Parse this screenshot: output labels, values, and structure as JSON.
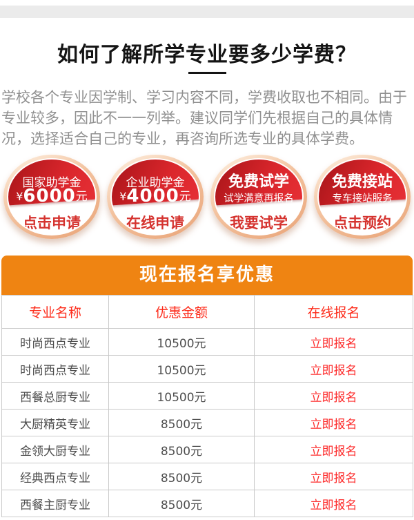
{
  "colors": {
    "accent_orange": "#ef8412",
    "badge_red": "#da262c",
    "badge_ring_peach": "#f3c29e",
    "action_red": "#d5332f",
    "table_header_red": "#fd2c1b",
    "enroll_link_red": "#fd2b2b",
    "intro_gray": "#909090",
    "top_bar_gray": "#ebebeb"
  },
  "header": {
    "title": "如何了解所学专业要多少学费？"
  },
  "intro": {
    "text": "学校各个专业因学制、学习内容不同，学费收取也不相同。由于专业较多，因此不一一列举。建议同学们先根据自己的具体情况，选择适合自己的专业，再咨询所选专业的具体学费。"
  },
  "badges": [
    {
      "title": "国家助学金",
      "currency": "¥",
      "amount": "6000",
      "unit": "元",
      "action": "点击申请"
    },
    {
      "title": "企业助学金",
      "currency": "¥",
      "amount": "4000",
      "unit": "元",
      "action": "在线申请"
    },
    {
      "title": "免费试学",
      "subtitle": "试学满意再报名",
      "action": "我要试学"
    },
    {
      "title": "免费接站",
      "subtitle": "专车接站服务",
      "action": "点击预约"
    }
  ],
  "promo": {
    "banner_title": "现在报名享优惠"
  },
  "table": {
    "headers": [
      "专业名称",
      "优惠金额",
      "在线报名"
    ],
    "rows": [
      {
        "major": "时尚西点专业",
        "discount": "10500元",
        "action": "立即报名"
      },
      {
        "major": "时尚西点专业",
        "discount": "10500元",
        "action": "立即报名"
      },
      {
        "major": "西餐总厨专业",
        "discount": "10500元",
        "action": "立即报名"
      },
      {
        "major": "大厨精英专业",
        "discount": "8500元",
        "action": "立即报名"
      },
      {
        "major": "金领大厨专业",
        "discount": "8500元",
        "action": "立即报名"
      },
      {
        "major": "经典西点专业",
        "discount": "8500元",
        "action": "立即报名"
      },
      {
        "major": "西餐主厨专业",
        "discount": "8500元",
        "action": "立即报名"
      }
    ]
  }
}
